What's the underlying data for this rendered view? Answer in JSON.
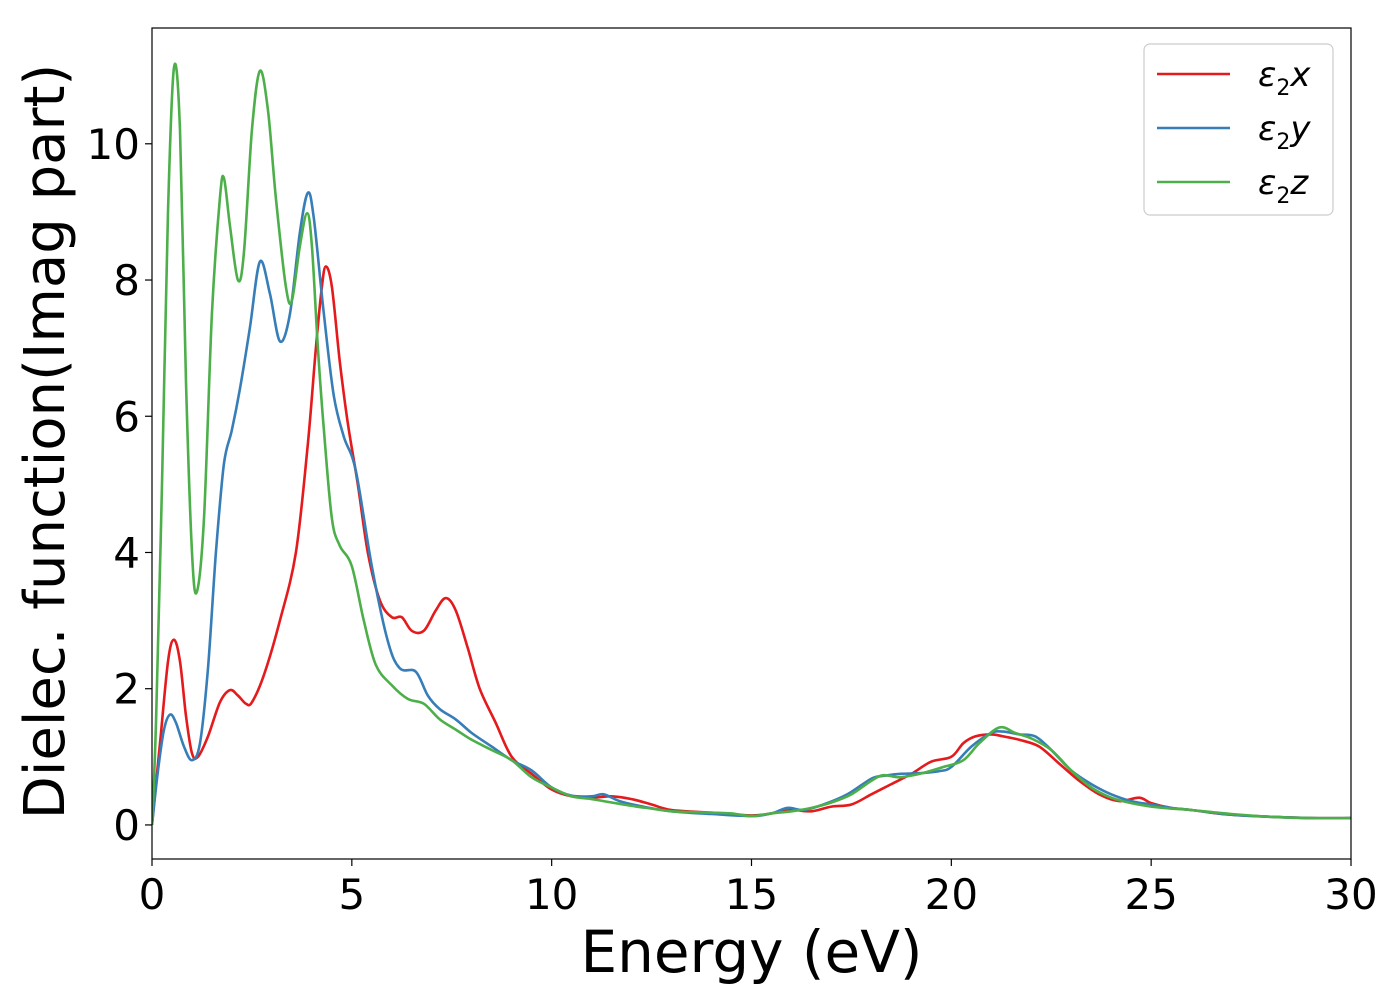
{
  "chart_data": {
    "type": "line",
    "title": "",
    "xlabel": "Energy (eV)",
    "ylabel": "Dielec. function(Imag part)",
    "xlim": [
      0,
      30
    ],
    "ylim": [
      -0.5,
      11.7
    ],
    "x_ticks": [
      0,
      5,
      10,
      15,
      20,
      25,
      30
    ],
    "y_ticks": [
      0,
      2,
      4,
      6,
      8,
      10
    ],
    "grid": false,
    "legend_position": "top-right",
    "series": [
      {
        "name": "ε2x",
        "legend": {
          "main": "ε",
          "sub": "2",
          "suffix": "x"
        },
        "color": "#e41a1c",
        "points": [
          [
            0,
            0
          ],
          [
            0.2,
            1.2
          ],
          [
            0.4,
            2.4
          ],
          [
            0.55,
            2.72
          ],
          [
            0.7,
            2.4
          ],
          [
            0.85,
            1.6
          ],
          [
            1.0,
            1.05
          ],
          [
            1.15,
            1.0
          ],
          [
            1.4,
            1.3
          ],
          [
            1.7,
            1.8
          ],
          [
            1.95,
            1.98
          ],
          [
            2.15,
            1.9
          ],
          [
            2.35,
            1.78
          ],
          [
            2.5,
            1.8
          ],
          [
            2.8,
            2.2
          ],
          [
            3.2,
            3.0
          ],
          [
            3.6,
            4.0
          ],
          [
            3.9,
            5.6
          ],
          [
            4.1,
            7.0
          ],
          [
            4.25,
            7.9
          ],
          [
            4.35,
            8.2
          ],
          [
            4.5,
            7.9
          ],
          [
            4.7,
            6.8
          ],
          [
            4.9,
            5.9
          ],
          [
            5.15,
            5.0
          ],
          [
            5.4,
            4.0
          ],
          [
            5.7,
            3.3
          ],
          [
            6.0,
            3.05
          ],
          [
            6.25,
            3.05
          ],
          [
            6.5,
            2.85
          ],
          [
            6.8,
            2.85
          ],
          [
            7.1,
            3.15
          ],
          [
            7.35,
            3.33
          ],
          [
            7.6,
            3.15
          ],
          [
            7.9,
            2.6
          ],
          [
            8.2,
            2.0
          ],
          [
            8.6,
            1.5
          ],
          [
            9.0,
            1.0
          ],
          [
            9.5,
            0.75
          ],
          [
            10.0,
            0.52
          ],
          [
            10.5,
            0.42
          ],
          [
            11.0,
            0.4
          ],
          [
            11.5,
            0.42
          ],
          [
            12.0,
            0.38
          ],
          [
            12.5,
            0.3
          ],
          [
            13.0,
            0.22
          ],
          [
            14.0,
            0.18
          ],
          [
            15.0,
            0.14
          ],
          [
            15.5,
            0.17
          ],
          [
            16.0,
            0.22
          ],
          [
            16.5,
            0.2
          ],
          [
            17.0,
            0.27
          ],
          [
            17.5,
            0.3
          ],
          [
            18.0,
            0.45
          ],
          [
            18.5,
            0.6
          ],
          [
            19.0,
            0.75
          ],
          [
            19.5,
            0.93
          ],
          [
            20.0,
            1.0
          ],
          [
            20.3,
            1.2
          ],
          [
            20.6,
            1.3
          ],
          [
            21.0,
            1.33
          ],
          [
            21.3,
            1.3
          ],
          [
            21.7,
            1.25
          ],
          [
            22.2,
            1.15
          ],
          [
            22.7,
            0.9
          ],
          [
            23.2,
            0.65
          ],
          [
            23.7,
            0.45
          ],
          [
            24.2,
            0.35
          ],
          [
            24.7,
            0.4
          ],
          [
            25.0,
            0.32
          ],
          [
            25.5,
            0.25
          ],
          [
            26.0,
            0.22
          ],
          [
            26.5,
            0.18
          ],
          [
            27.0,
            0.15
          ],
          [
            28.0,
            0.12
          ],
          [
            29.0,
            0.1
          ],
          [
            30.0,
            0.1
          ]
        ]
      },
      {
        "name": "ε2y",
        "legend": {
          "main": "ε",
          "sub": "2",
          "suffix": "y"
        },
        "color": "#377eb8",
        "points": [
          [
            0,
            0
          ],
          [
            0.15,
            0.8
          ],
          [
            0.3,
            1.4
          ],
          [
            0.45,
            1.62
          ],
          [
            0.6,
            1.5
          ],
          [
            0.8,
            1.15
          ],
          [
            1.0,
            0.95
          ],
          [
            1.2,
            1.2
          ],
          [
            1.4,
            2.3
          ],
          [
            1.6,
            4.0
          ],
          [
            1.8,
            5.3
          ],
          [
            2.0,
            5.8
          ],
          [
            2.2,
            6.4
          ],
          [
            2.45,
            7.3
          ],
          [
            2.7,
            8.27
          ],
          [
            2.95,
            7.8
          ],
          [
            3.2,
            7.1
          ],
          [
            3.45,
            7.5
          ],
          [
            3.7,
            8.7
          ],
          [
            3.9,
            9.28
          ],
          [
            4.05,
            8.9
          ],
          [
            4.3,
            7.5
          ],
          [
            4.55,
            6.3
          ],
          [
            4.8,
            5.7
          ],
          [
            5.1,
            5.2
          ],
          [
            5.5,
            3.8
          ],
          [
            5.9,
            2.7
          ],
          [
            6.2,
            2.3
          ],
          [
            6.6,
            2.25
          ],
          [
            6.9,
            1.9
          ],
          [
            7.2,
            1.7
          ],
          [
            7.6,
            1.55
          ],
          [
            8.0,
            1.35
          ],
          [
            8.5,
            1.15
          ],
          [
            9.0,
            0.95
          ],
          [
            9.5,
            0.8
          ],
          [
            10.0,
            0.55
          ],
          [
            10.5,
            0.43
          ],
          [
            11.0,
            0.42
          ],
          [
            11.3,
            0.45
          ],
          [
            11.7,
            0.35
          ],
          [
            12.2,
            0.28
          ],
          [
            13.0,
            0.2
          ],
          [
            14.0,
            0.16
          ],
          [
            15.0,
            0.13
          ],
          [
            15.5,
            0.17
          ],
          [
            15.9,
            0.25
          ],
          [
            16.3,
            0.22
          ],
          [
            16.8,
            0.3
          ],
          [
            17.4,
            0.45
          ],
          [
            18.0,
            0.68
          ],
          [
            18.3,
            0.72
          ],
          [
            18.7,
            0.75
          ],
          [
            19.2,
            0.76
          ],
          [
            19.7,
            0.79
          ],
          [
            20.0,
            0.85
          ],
          [
            20.5,
            1.15
          ],
          [
            21.0,
            1.35
          ],
          [
            21.3,
            1.37
          ],
          [
            21.7,
            1.33
          ],
          [
            22.1,
            1.3
          ],
          [
            22.5,
            1.1
          ],
          [
            23.0,
            0.8
          ],
          [
            23.5,
            0.6
          ],
          [
            24.0,
            0.45
          ],
          [
            24.5,
            0.35
          ],
          [
            25.0,
            0.3
          ],
          [
            25.5,
            0.25
          ],
          [
            26.0,
            0.22
          ],
          [
            27.0,
            0.15
          ],
          [
            28.0,
            0.12
          ],
          [
            29.0,
            0.1
          ],
          [
            30.0,
            0.1
          ]
        ]
      },
      {
        "name": "ε2z",
        "legend": {
          "main": "ε",
          "sub": "2",
          "suffix": "z"
        },
        "color": "#4daf4a",
        "points": [
          [
            0,
            0
          ],
          [
            0.1,
            1.5
          ],
          [
            0.25,
            5.0
          ],
          [
            0.4,
            9.0
          ],
          [
            0.55,
            11.12
          ],
          [
            0.7,
            10.2
          ],
          [
            0.85,
            6.5
          ],
          [
            1.0,
            4.0
          ],
          [
            1.12,
            3.42
          ],
          [
            1.3,
            4.5
          ],
          [
            1.5,
            7.5
          ],
          [
            1.7,
            9.2
          ],
          [
            1.8,
            9.5
          ],
          [
            1.95,
            8.8
          ],
          [
            2.15,
            8.0
          ],
          [
            2.3,
            8.4
          ],
          [
            2.5,
            10.2
          ],
          [
            2.7,
            11.07
          ],
          [
            2.9,
            10.5
          ],
          [
            3.1,
            9.2
          ],
          [
            3.35,
            7.9
          ],
          [
            3.5,
            7.7
          ],
          [
            3.7,
            8.5
          ],
          [
            3.88,
            8.98
          ],
          [
            4.0,
            8.5
          ],
          [
            4.15,
            7.0
          ],
          [
            4.3,
            5.8
          ],
          [
            4.5,
            4.5
          ],
          [
            4.7,
            4.1
          ],
          [
            5.0,
            3.8
          ],
          [
            5.3,
            3.0
          ],
          [
            5.6,
            2.35
          ],
          [
            6.0,
            2.05
          ],
          [
            6.4,
            1.85
          ],
          [
            6.8,
            1.78
          ],
          [
            7.2,
            1.55
          ],
          [
            7.6,
            1.4
          ],
          [
            8.0,
            1.25
          ],
          [
            8.5,
            1.1
          ],
          [
            9.0,
            0.95
          ],
          [
            9.5,
            0.7
          ],
          [
            10.0,
            0.55
          ],
          [
            10.5,
            0.42
          ],
          [
            11.0,
            0.38
          ],
          [
            11.5,
            0.33
          ],
          [
            12.0,
            0.28
          ],
          [
            12.5,
            0.24
          ],
          [
            13.0,
            0.2
          ],
          [
            14.0,
            0.18
          ],
          [
            14.5,
            0.17
          ],
          [
            15.0,
            0.13
          ],
          [
            15.5,
            0.17
          ],
          [
            16.0,
            0.2
          ],
          [
            16.5,
            0.25
          ],
          [
            17.0,
            0.33
          ],
          [
            17.5,
            0.45
          ],
          [
            18.0,
            0.65
          ],
          [
            18.3,
            0.73
          ],
          [
            18.7,
            0.7
          ],
          [
            19.2,
            0.75
          ],
          [
            19.8,
            0.85
          ],
          [
            20.3,
            0.95
          ],
          [
            20.7,
            1.2
          ],
          [
            21.2,
            1.43
          ],
          [
            21.6,
            1.35
          ],
          [
            22.0,
            1.27
          ],
          [
            22.5,
            1.1
          ],
          [
            23.0,
            0.8
          ],
          [
            23.5,
            0.55
          ],
          [
            24.0,
            0.4
          ],
          [
            24.5,
            0.32
          ],
          [
            25.0,
            0.27
          ],
          [
            25.5,
            0.24
          ],
          [
            26.0,
            0.22
          ],
          [
            27.0,
            0.16
          ],
          [
            28.0,
            0.12
          ],
          [
            29.0,
            0.1
          ],
          [
            30.0,
            0.1
          ]
        ]
      }
    ]
  }
}
